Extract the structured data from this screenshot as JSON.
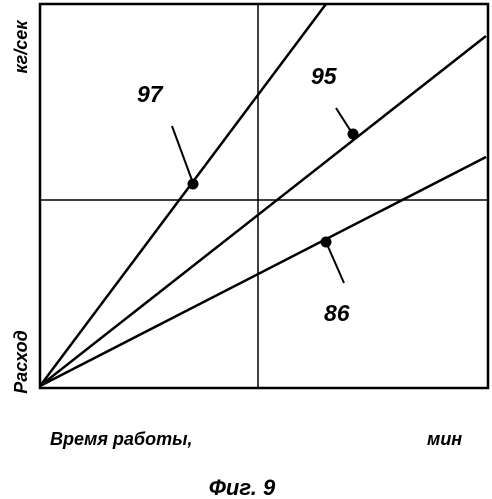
{
  "figure_caption": "Фиг. 9",
  "axes": {
    "y_label_top": "кг/сек",
    "y_label_bottom": "Расход",
    "x_label_left": "Время работы,",
    "x_label_right": "мин"
  },
  "curves": [
    {
      "id": "line-97",
      "label": "97"
    },
    {
      "id": "line-95",
      "label": "95"
    },
    {
      "id": "line-86",
      "label": "86"
    }
  ],
  "colors": {
    "ink": "#000000",
    "background": "#ffffff"
  }
}
